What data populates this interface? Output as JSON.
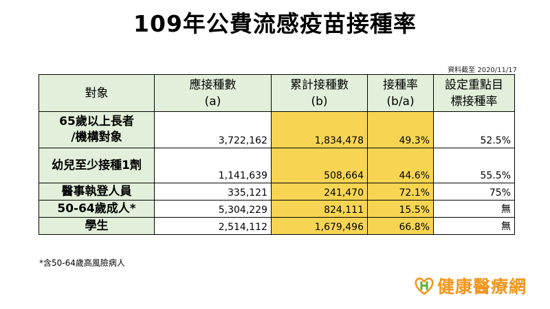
{
  "title": "109年公費流感疫苗接種率",
  "as_of": "資料截至 2020/11/17",
  "headers": {
    "target": "對象",
    "should_line1": "應接種數",
    "should_line2": "(a)",
    "cum_line1": "累計接種數",
    "cum_line2": "(b)",
    "rate_line1": "接種率",
    "rate_line2": "(b/a)",
    "goal_line1": "設定重點目",
    "goal_line2": "標接種率"
  },
  "rows": [
    {
      "name_line1": "65歲以上長者",
      "name_line2": "/機構對象",
      "should": "3,722,162",
      "cumulative": "1,834,478",
      "rate": "49.3%",
      "goal": "52.5%"
    },
    {
      "name_line1": "幼兒至少接種1劑",
      "name_line2": "",
      "should": "1,141,639",
      "cumulative": "508,664",
      "rate": "44.6%",
      "goal": "55.5%"
    },
    {
      "name_line1": "醫事執登人員",
      "name_line2": "",
      "should": "335,121",
      "cumulative": "241,470",
      "rate": "72.1%",
      "goal": "75%"
    },
    {
      "name_line1": "50-64歲成人*",
      "name_line2": "",
      "should": "5,304,229",
      "cumulative": "824,111",
      "rate": "15.5%",
      "goal": "無"
    },
    {
      "name_line1": "學生",
      "name_line2": "",
      "should": "2,514,112",
      "cumulative": "1,679,496",
      "rate": "66.8%",
      "goal": "無"
    }
  ],
  "footnote": "*含50-64歲高風險病人",
  "logo": {
    "text": "健康醫療網",
    "brand_color": "#f0961e",
    "icon": "heart-h-logo-icon"
  },
  "colors": {
    "header_bg": "#e2efda",
    "highlight": "#f7d553"
  }
}
